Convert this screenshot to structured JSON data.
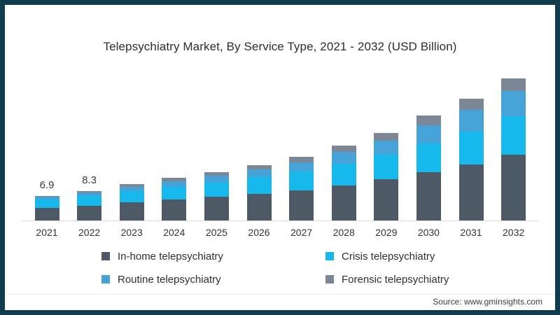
{
  "frame": {
    "border_color": "#113c4f",
    "background": "#ffffff"
  },
  "title": "Telepsychiatry Market, By Service Type, 2021 - 2032 (USD Billion)",
  "source": "Source: www.gminsights.com",
  "chart_data": {
    "type": "bar",
    "stacked": true,
    "title": "Telepsychiatry Market, By Service Type, 2021 - 2032 (USD Billion)",
    "categories": [
      "2021",
      "2022",
      "2023",
      "2024",
      "2025",
      "2026",
      "2027",
      "2028",
      "2029",
      "2030",
      "2031",
      "2032"
    ],
    "series": [
      {
        "name": "In-home telepsychiatry",
        "color": "#4d5a66",
        "values": [
          3.6,
          4.2,
          5.1,
          5.8,
          6.6,
          7.4,
          8.5,
          9.9,
          11.5,
          13.5,
          15.7,
          18.4
        ]
      },
      {
        "name": "Crisis telepsychiatry",
        "color": "#17b8ec",
        "values": [
          2.3,
          2.7,
          3.2,
          3.7,
          4.1,
          4.7,
          5.2,
          6.1,
          6.9,
          8.2,
          9.2,
          10.8
        ]
      },
      {
        "name": "Routine telepsychiatry",
        "color": "#46a3d8",
        "values": [
          0.7,
          0.9,
          1.2,
          1.5,
          1.9,
          2.2,
          2.7,
          3.3,
          4.0,
          5.0,
          6.1,
          7.2
        ]
      },
      {
        "name": "Forensic telepsychiatry",
        "color": "#7c8795",
        "values": [
          0.3,
          0.5,
          0.7,
          0.9,
          0.9,
          1.2,
          1.4,
          1.7,
          2.2,
          2.7,
          3.1,
          3.5
        ]
      }
    ],
    "bar_labels": [
      "6.9",
      "8.3",
      "",
      "",
      "",
      "",
      "",
      "",
      "",
      "",
      "",
      ""
    ],
    "totals_estimated": [
      6.9,
      8.3,
      10.2,
      11.9,
      13.5,
      15.5,
      17.8,
      21.0,
      24.6,
      29.4,
      34.1,
      39.9
    ],
    "xlabel": "",
    "ylabel": "",
    "ylim": [
      0,
      42
    ],
    "grid": false,
    "y_axis_ticks_visible": false,
    "legend_position": "bottom",
    "axis_line_color": "#dcdcdc"
  },
  "legend": {
    "items": [
      {
        "label": "In-home telepsychiatry",
        "color": "#4d5a66"
      },
      {
        "label": "Crisis telepsychiatry",
        "color": "#17b8ec"
      },
      {
        "label": "Routine telepsychiatry",
        "color": "#46a3d8"
      },
      {
        "label": "Forensic telepsychiatry",
        "color": "#7c8795"
      }
    ]
  }
}
